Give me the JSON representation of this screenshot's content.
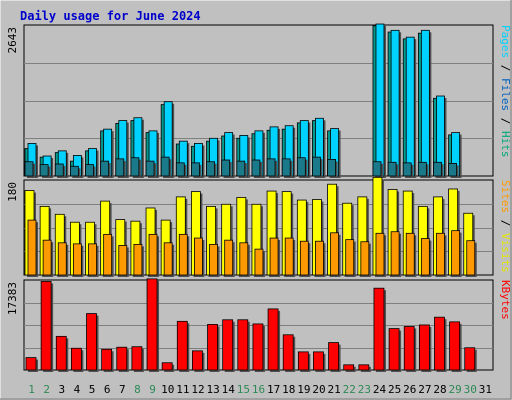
{
  "chart_data": {
    "type": "bar",
    "title": "Daily usage for June 2024",
    "categories": [
      "1",
      "2",
      "3",
      "4",
      "5",
      "6",
      "7",
      "8",
      "9",
      "10",
      "11",
      "12",
      "13",
      "14",
      "15",
      "16",
      "17",
      "18",
      "19",
      "20",
      "21",
      "22",
      "23",
      "24",
      "25",
      "26",
      "27",
      "28",
      "29",
      "30",
      "31"
    ],
    "weekend_days": [
      "1",
      "2",
      "8",
      "9",
      "15",
      "16",
      "22",
      "23",
      "29",
      "30"
    ],
    "colors": {
      "hits": "#00d2ff",
      "files": "#00b4a6",
      "pages": "#1a7a8a",
      "visits": "#ffff00",
      "sites": "#ff9900",
      "kbytes": "#ff0000",
      "weekday": "#000000",
      "weekend": "#2d8a55",
      "bar_outline": "#000000",
      "panel": "#c0c0c0",
      "grid": "#808080",
      "title": "#0000cc"
    },
    "panels": [
      {
        "ymax_label": "2643",
        "ylim": [
          0,
          2643
        ],
        "axis_legend": [
          {
            "text": "Pages",
            "color": "#00d2ff"
          },
          {
            "text": " / ",
            "color": "#000000"
          },
          {
            "text": "Files",
            "color": "#0060c0"
          },
          {
            "text": " / ",
            "color": "#000000"
          },
          {
            "text": "Hits",
            "color": "#00a87a"
          }
        ],
        "series": [
          {
            "name": "Hits",
            "values": [
              570,
              350,
              440,
              360,
              480,
              820,
              970,
              1020,
              790,
              1300,
              610,
              570,
              660,
              760,
              710,
              790,
              860,
              880,
              970,
              1010,
              830,
              2660,
              2550,
              2430,
              2550,
              1400,
              760
            ]
          },
          {
            "name": "Files",
            "values": [
              480,
              330,
              410,
              260,
              440,
              790,
              920,
              970,
              760,
              1250,
              560,
              520,
              610,
              700,
              660,
              740,
              800,
              820,
              930,
              970,
              790,
              2630,
              2520,
              2400,
              2500,
              1360,
              720
            ]
          },
          {
            "name": "Pages",
            "values": [
              250,
              200,
              210,
              170,
              200,
              260,
              300,
              320,
              260,
              330,
              230,
              230,
              250,
              280,
              260,
              280,
              300,
              300,
              320,
              330,
              290,
              250,
              240,
              230,
              240,
              240,
              220
            ]
          }
        ],
        "series_days": [
          "1",
          "2",
          "3",
          "4",
          "5",
          "6",
          "7",
          "8",
          "9",
          "10",
          "11",
          "12",
          "13",
          "14",
          "15",
          "16",
          "17",
          "18",
          "19",
          "20",
          "21",
          "24",
          "25",
          "26",
          "27",
          "28",
          "29"
        ]
      },
      {
        "ymax_label": "180",
        "ylim": [
          0,
          180
        ],
        "axis_legend": [
          {
            "text": "Sites",
            "color": "#ff9900"
          },
          {
            "text": " / ",
            "color": "#000000"
          },
          {
            "text": "Visits",
            "color": "#e6e600"
          }
        ],
        "series": [
          {
            "name": "Visits",
            "values": [
              160,
              130,
              115,
              100,
              100,
              140,
              105,
              102,
              127,
              104,
              148,
              158,
              130,
              134,
              147,
              134,
              159,
              158,
              142,
              143,
              172,
              136,
              148,
              185,
              162,
              159,
              130,
              148,
              163,
              117
            ]
          },
          {
            "name": "Sites",
            "values": [
              104,
              66,
              61,
              59,
              59,
              77,
              56,
              58,
              77,
              61,
              77,
              70,
              58,
              66,
              61,
              49,
              70,
              70,
              64,
              64,
              80,
              67,
              63,
              79,
              82,
              79,
              69,
              79,
              84,
              65
            ]
          }
        ]
      },
      {
        "ymax_label": "17383",
        "ylim": [
          0,
          17383
        ],
        "axis_legend": [
          {
            "text": "KBytes",
            "color": "#ff0000"
          }
        ],
        "series": [
          {
            "name": "KBytes",
            "values": [
              2400,
              17100,
              6500,
              4200,
              10900,
              4000,
              4400,
              4500,
              17600,
              1400,
              9400,
              3700,
              8800,
              9700,
              9700,
              8900,
              11800,
              6800,
              3500,
              3500,
              5300,
              1000,
              1000,
              15800,
              8000,
              8400,
              8700,
              10200,
              9300,
              4300,
              0
            ]
          }
        ]
      }
    ]
  }
}
